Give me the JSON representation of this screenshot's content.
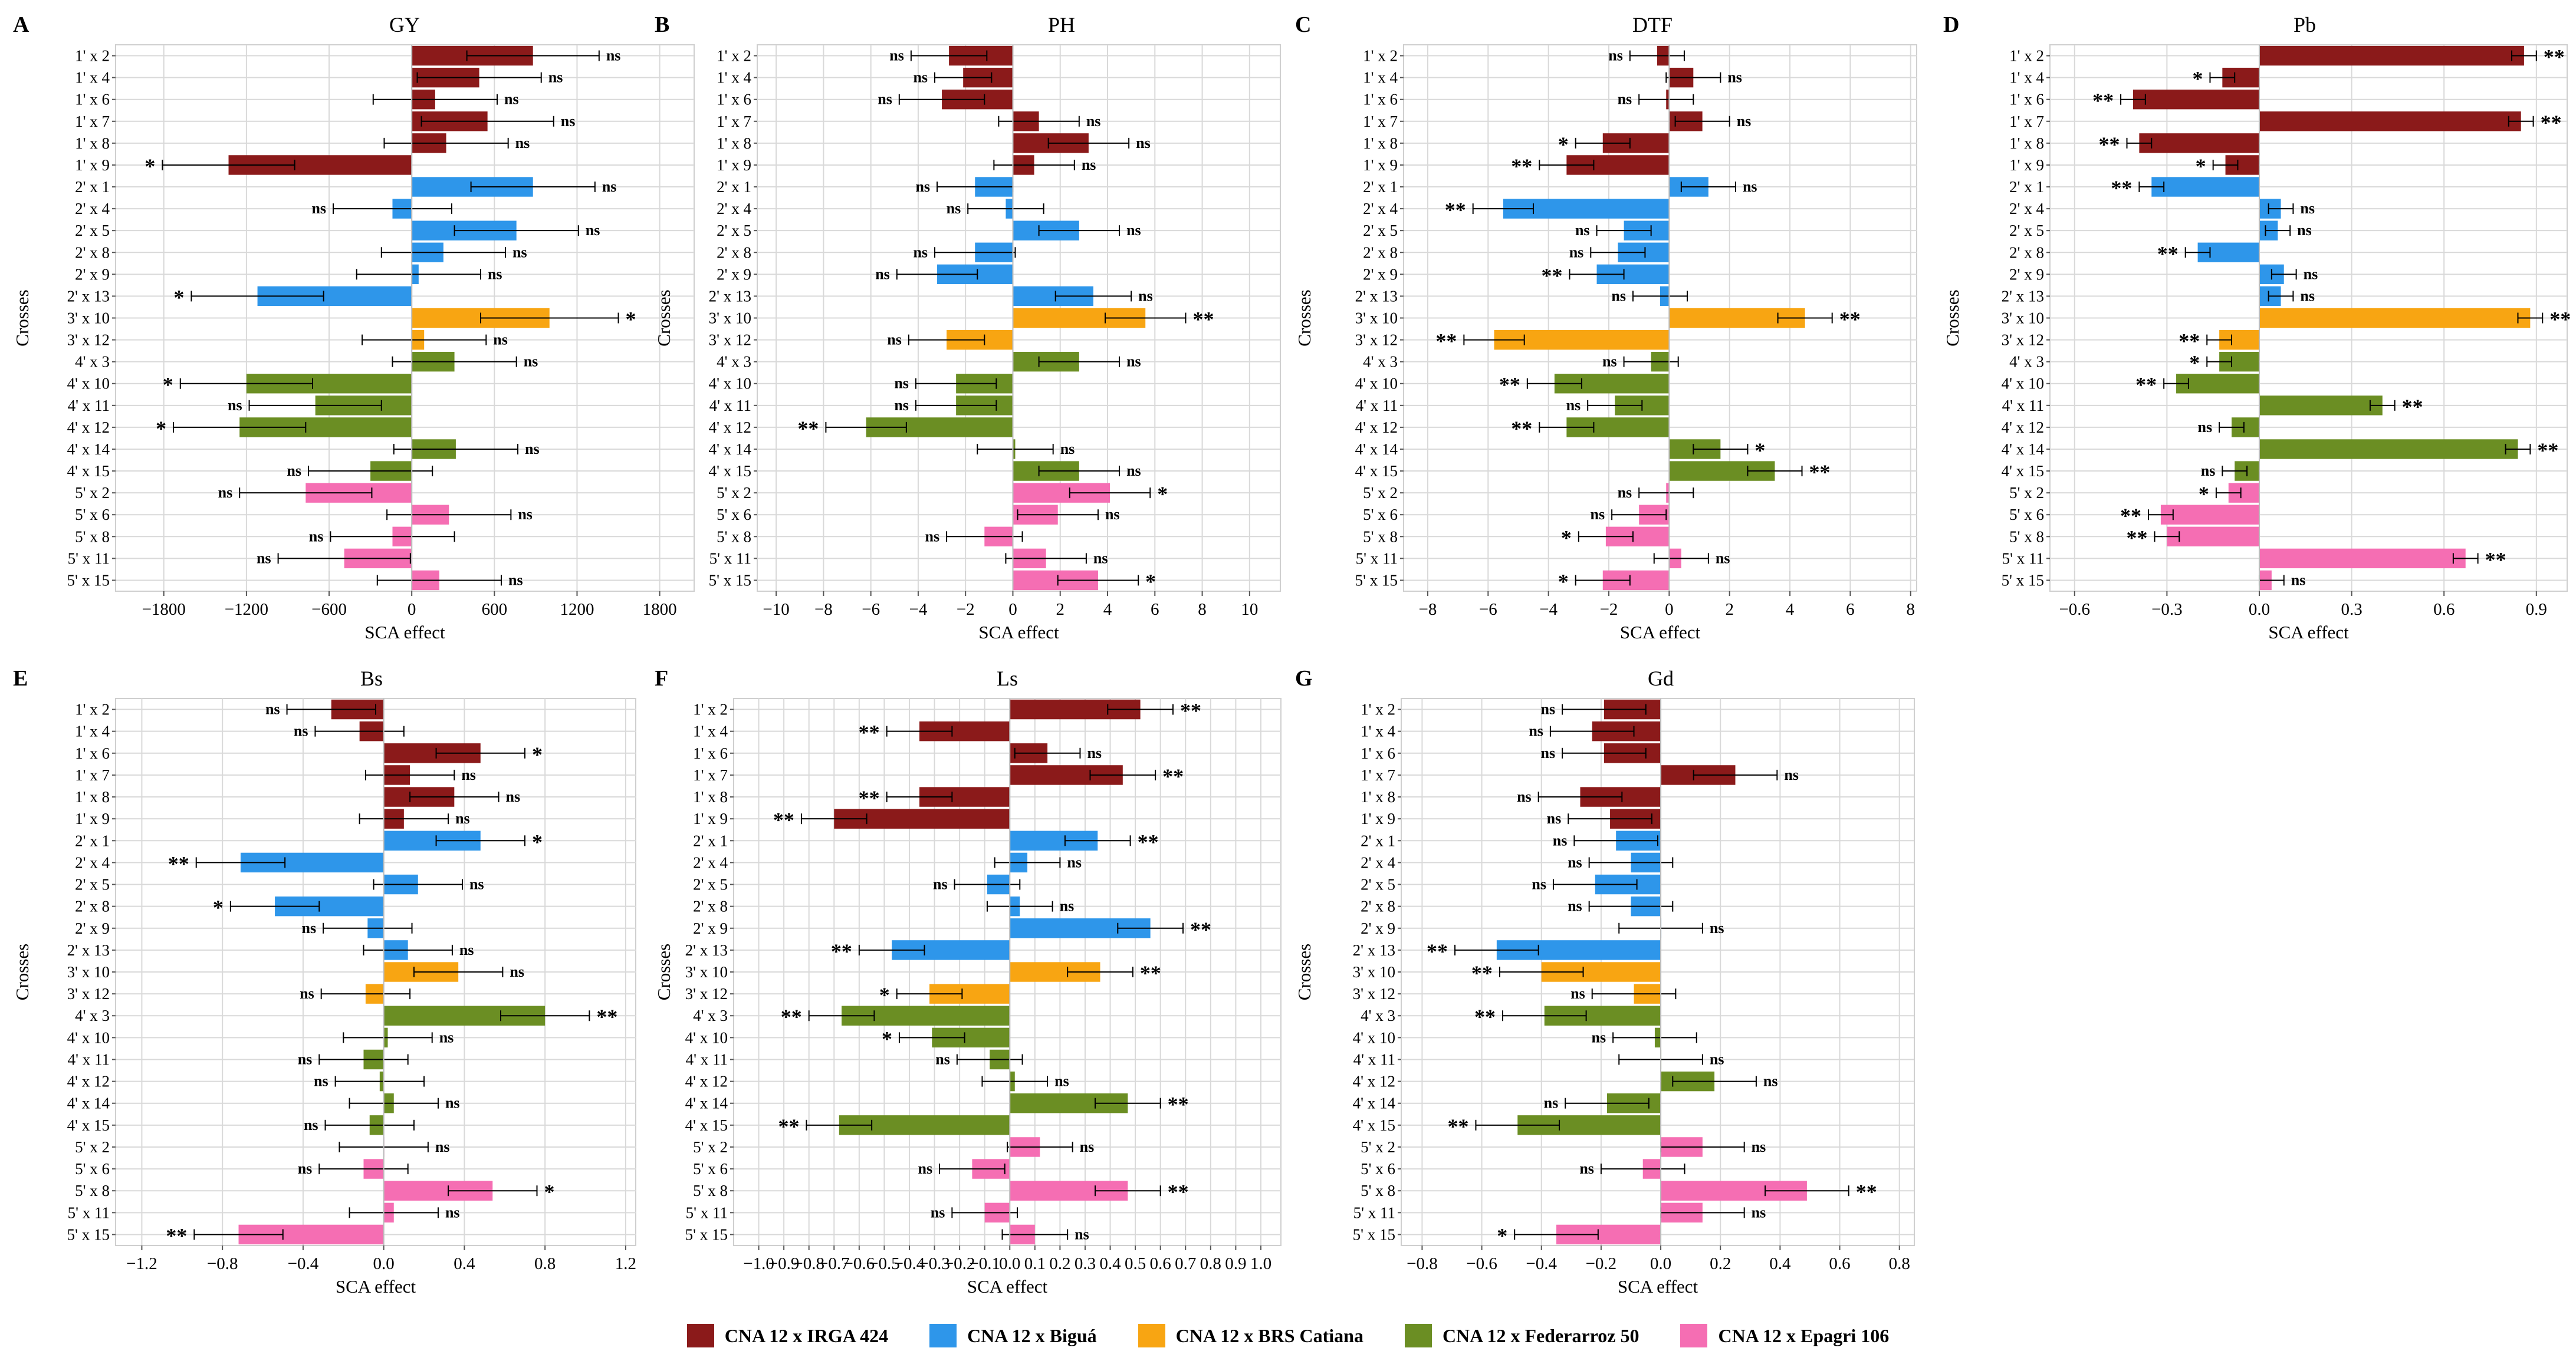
{
  "groups": [
    {
      "name": "CNA 12 x IRGA 424",
      "color": "#8B1A1A"
    },
    {
      "name": "CNA 12 x Biguá",
      "color": "#2E96EA"
    },
    {
      "name": "CNA 12 x BRS Catiana",
      "color": "#F8A512"
    },
    {
      "name": "CNA 12 x Federarroz 50",
      "color": "#6B8E23"
    },
    {
      "name": "CNA 12 x Epagri 106",
      "color": "#F56EB3"
    }
  ],
  "rows_top": [
    "1' x 2",
    "1' x 4",
    "1' x 6",
    "1' x 7",
    "1' x 8",
    "1' x 9",
    "2' x 1",
    "2' x 4",
    "2' x 5",
    "2' x 8",
    "2' x 9",
    "2' x 13",
    "3' x 10",
    "3' x 12",
    "4' x 3",
    "4' x 10",
    "4' x 11",
    "4' x 12",
    "4' x 14",
    "4' x 15",
    "5' x 2",
    "5' x 6",
    "5' x 8",
    "5' x 11",
    "5' x 15"
  ],
  "rows_top_groups": [
    0,
    0,
    0,
    0,
    0,
    0,
    1,
    1,
    1,
    1,
    1,
    1,
    2,
    2,
    3,
    3,
    3,
    3,
    3,
    3,
    4,
    4,
    4,
    4,
    4
  ],
  "rows_bottom": [
    "1' x 2",
    "1' x 4",
    "1' x 6",
    "1' x 7",
    "1' x 8",
    "1' x 9",
    "2' x 1",
    "2' x 4",
    "2' x 5",
    "2' x 8",
    "2' x 9",
    "2' x 13",
    "3' x 10",
    "3' x 12",
    "4' x 3",
    "4' x 10",
    "4' x 11",
    "4' x 12",
    "4' x 14",
    "4' x 15",
    "5' x 2",
    "5' x 6",
    "5' x 8",
    "5' x 11",
    "5' x 15"
  ],
  "rows_bottom_groups": [
    0,
    0,
    0,
    0,
    0,
    0,
    1,
    1,
    1,
    1,
    1,
    1,
    2,
    2,
    3,
    3,
    3,
    3,
    3,
    3,
    4,
    4,
    4,
    4,
    4
  ],
  "chart_data": [
    {
      "panel": "A",
      "type": "bar",
      "title": "GY",
      "xlabel": "SCA effect",
      "ylabel": "Crosses",
      "rows": "top",
      "xlim": [
        -2150,
        2050
      ],
      "ticks": [
        -1800,
        -1200,
        -600,
        0,
        600,
        1200,
        1800
      ],
      "values": [
        880,
        490,
        170,
        550,
        250,
        -1330,
        880,
        -140,
        760,
        230,
        50,
        -1120,
        1000,
        90,
        310,
        -1200,
        -700,
        -1250,
        320,
        -300,
        -770,
        270,
        -140,
        -490,
        200
      ],
      "errors": [
        480,
        450,
        450,
        480,
        450,
        480,
        450,
        430,
        450,
        450,
        450,
        480,
        500,
        450,
        450,
        480,
        480,
        480,
        450,
        450,
        480,
        450,
        450,
        480,
        450
      ],
      "sig": [
        "ns",
        "ns",
        "ns",
        "ns",
        "ns",
        "*",
        "ns",
        "ns",
        "ns",
        "ns",
        "ns",
        "*",
        "*",
        "ns",
        "ns",
        "*",
        "ns",
        "*",
        "ns",
        "ns",
        "ns",
        "ns",
        "ns",
        "ns",
        "ns"
      ]
    },
    {
      "panel": "B",
      "type": "bar",
      "title": "PH",
      "xlabel": "SCA effect",
      "ylabel": "Crosses",
      "rows": "top",
      "xlim": [
        -10.8,
        11.3
      ],
      "ticks": [
        -10,
        -8,
        -6,
        -4,
        -2,
        0,
        2,
        4,
        6,
        8,
        10
      ],
      "values": [
        -2.7,
        -2.1,
        -3.0,
        1.1,
        3.2,
        0.9,
        -1.6,
        -0.3,
        2.8,
        -1.6,
        -3.2,
        3.4,
        5.6,
        -2.8,
        2.8,
        -2.4,
        -2.4,
        -6.2,
        0.1,
        2.8,
        4.1,
        1.9,
        -1.2,
        1.4,
        3.6
      ],
      "errors": [
        1.6,
        1.2,
        1.8,
        1.7,
        1.7,
        1.7,
        1.6,
        1.6,
        1.7,
        1.7,
        1.7,
        1.6,
        1.7,
        1.6,
        1.7,
        1.7,
        1.7,
        1.7,
        1.6,
        1.7,
        1.7,
        1.7,
        1.6,
        1.7,
        1.7
      ],
      "sig": [
        "ns",
        "ns",
        "ns",
        "ns",
        "ns",
        "ns",
        "ns",
        "ns",
        "ns",
        "ns",
        "ns",
        "ns",
        "**",
        "ns",
        "ns",
        "ns",
        "ns",
        "**",
        "ns",
        "ns",
        "*",
        "ns",
        "ns",
        "ns",
        "*"
      ]
    },
    {
      "panel": "C",
      "type": "bar",
      "title": "DTF",
      "xlabel": "SCA effect",
      "ylabel": "Crosses",
      "rows": "top",
      "xlim": [
        -8.8,
        8.2
      ],
      "ticks": [
        -8,
        -6,
        -4,
        -2,
        0,
        2,
        4,
        6,
        8
      ],
      "values": [
        -0.4,
        0.8,
        -0.1,
        1.1,
        -2.2,
        -3.4,
        1.3,
        -5.5,
        -1.5,
        -1.7,
        -2.4,
        -0.3,
        4.5,
        -5.8,
        -0.6,
        -3.8,
        -1.8,
        -3.4,
        1.7,
        3.5,
        -0.1,
        -1.0,
        -2.1,
        0.4,
        -2.2
      ],
      "errors": [
        0.9,
        0.9,
        0.9,
        0.9,
        0.9,
        0.9,
        0.9,
        1.0,
        0.9,
        0.9,
        0.9,
        0.9,
        0.9,
        1.0,
        0.9,
        0.9,
        0.9,
        0.9,
        0.9,
        0.9,
        0.9,
        0.9,
        0.9,
        0.9,
        0.9
      ],
      "sig": [
        "ns",
        "ns",
        "ns",
        "ns",
        "*",
        "**",
        "ns",
        "**",
        "ns",
        "ns",
        "**",
        "ns",
        "**",
        "**",
        "ns",
        "**",
        "ns",
        "**",
        "*",
        "**",
        "ns",
        "ns",
        "*",
        "ns",
        "*"
      ]
    },
    {
      "panel": "D",
      "type": "bar",
      "title": "Pb",
      "xlabel": "SCA effect",
      "ylabel": "Crosses",
      "rows": "top",
      "xlim": [
        -0.68,
        1.0
      ],
      "ticks": [
        -0.6,
        -0.3,
        0.0,
        0.3,
        0.6,
        0.9
      ],
      "values": [
        0.86,
        -0.12,
        -0.41,
        0.85,
        -0.39,
        -0.11,
        -0.35,
        0.07,
        0.06,
        -0.2,
        0.08,
        0.07,
        0.88,
        -0.13,
        -0.13,
        -0.27,
        0.4,
        -0.09,
        0.84,
        -0.08,
        -0.1,
        -0.32,
        -0.3,
        0.67,
        0.04
      ],
      "errors": [
        0.04,
        0.04,
        0.04,
        0.04,
        0.04,
        0.04,
        0.04,
        0.04,
        0.04,
        0.04,
        0.04,
        0.04,
        0.04,
        0.04,
        0.04,
        0.04,
        0.04,
        0.04,
        0.04,
        0.04,
        0.04,
        0.04,
        0.04,
        0.04,
        0.04
      ],
      "sig": [
        "**",
        "*",
        "**",
        "**",
        "**",
        "*",
        "**",
        "ns",
        "ns",
        "**",
        "ns",
        "ns",
        "**",
        "**",
        "*",
        "**",
        "**",
        "ns",
        "**",
        "ns",
        "*",
        "**",
        "**",
        "**",
        "ns"
      ]
    },
    {
      "panel": "E",
      "type": "bar",
      "title": "Bs",
      "xlabel": "SCA effect",
      "ylabel": "Crosses",
      "rows": "bottom",
      "xlim": [
        -1.33,
        1.25
      ],
      "ticks": [
        -1.2,
        -0.8,
        -0.4,
        0.0,
        0.4,
        0.8,
        1.2
      ],
      "values": [
        -0.26,
        -0.12,
        0.48,
        0.13,
        0.35,
        0.1,
        0.48,
        -0.71,
        0.17,
        -0.54,
        -0.08,
        0.12,
        0.37,
        -0.09,
        0.8,
        0.02,
        -0.1,
        -0.02,
        0.05,
        -0.07,
        0.0,
        -0.1,
        0.54,
        0.05,
        -0.72
      ],
      "errors": [
        0.22,
        0.22,
        0.22,
        0.22,
        0.22,
        0.22,
        0.22,
        0.22,
        0.22,
        0.22,
        0.22,
        0.22,
        0.22,
        0.22,
        0.22,
        0.22,
        0.22,
        0.22,
        0.22,
        0.22,
        0.22,
        0.22,
        0.22,
        0.22,
        0.22
      ],
      "sig": [
        "ns",
        "ns",
        "*",
        "ns",
        "ns",
        "ns",
        "*",
        "**",
        "ns",
        "*",
        "ns",
        "ns",
        "ns",
        "ns",
        "**",
        "ns",
        "ns",
        "ns",
        "ns",
        "ns",
        "ns",
        "ns",
        "*",
        "ns",
        "**"
      ]
    },
    {
      "panel": "F",
      "type": "bar",
      "title": "Ls",
      "xlabel": "SCA effect",
      "ylabel": "Crosses",
      "rows": "bottom",
      "xlim": [
        -1.1,
        1.08
      ],
      "ticks": [
        -1.0,
        -0.9,
        -0.8,
        -0.7,
        -0.6,
        -0.5,
        -0.4,
        -0.3,
        -0.2,
        -0.1,
        0.0,
        0.1,
        0.2,
        0.3,
        0.4,
        0.5,
        0.6,
        0.7,
        0.8,
        0.9,
        1.0
      ],
      "values": [
        0.52,
        -0.36,
        0.15,
        0.45,
        -0.36,
        -0.7,
        0.35,
        0.07,
        -0.09,
        0.04,
        0.56,
        -0.47,
        0.36,
        -0.32,
        -0.67,
        -0.31,
        -0.08,
        0.02,
        0.47,
        -0.68,
        0.12,
        -0.15,
        0.47,
        -0.1,
        0.1
      ],
      "errors": [
        0.13,
        0.13,
        0.13,
        0.13,
        0.13,
        0.13,
        0.13,
        0.13,
        0.13,
        0.13,
        0.13,
        0.13,
        0.13,
        0.13,
        0.13,
        0.13,
        0.13,
        0.13,
        0.13,
        0.13,
        0.13,
        0.13,
        0.13,
        0.13,
        0.13
      ],
      "sig": [
        "**",
        "**",
        "ns",
        "**",
        "**",
        "**",
        "**",
        "ns",
        "ns",
        "ns",
        "**",
        "**",
        "**",
        "*",
        "**",
        "*",
        "ns",
        "ns",
        "**",
        "**",
        "ns",
        "ns",
        "**",
        "ns",
        "ns"
      ]
    },
    {
      "panel": "G",
      "type": "bar",
      "title": "Gd",
      "xlabel": "SCA effect",
      "ylabel": "Crosses",
      "rows": "bottom",
      "xlim": [
        -0.87,
        0.85
      ],
      "ticks": [
        -0.8,
        -0.6,
        -0.4,
        -0.2,
        0.0,
        0.2,
        0.4,
        0.6,
        0.8
      ],
      "values": [
        -0.19,
        -0.23,
        -0.19,
        0.25,
        -0.27,
        -0.17,
        -0.15,
        -0.1,
        -0.22,
        -0.1,
        0.0,
        -0.55,
        -0.4,
        -0.09,
        -0.39,
        -0.02,
        0.0,
        0.18,
        -0.18,
        -0.48,
        0.14,
        -0.06,
        0.49,
        0.14,
        -0.35
      ],
      "errors": [
        0.14,
        0.14,
        0.14,
        0.14,
        0.14,
        0.14,
        0.14,
        0.14,
        0.14,
        0.14,
        0.14,
        0.14,
        0.14,
        0.14,
        0.14,
        0.14,
        0.14,
        0.14,
        0.14,
        0.14,
        0.14,
        0.14,
        0.14,
        0.14,
        0.14
      ],
      "sig": [
        "ns",
        "ns",
        "ns",
        "ns",
        "ns",
        "ns",
        "ns",
        "ns",
        "ns",
        "ns",
        "ns",
        "**",
        "**",
        "ns",
        "**",
        "ns",
        "ns",
        "ns",
        "ns",
        "**",
        "ns",
        "ns",
        "**",
        "ns",
        "*"
      ]
    }
  ]
}
